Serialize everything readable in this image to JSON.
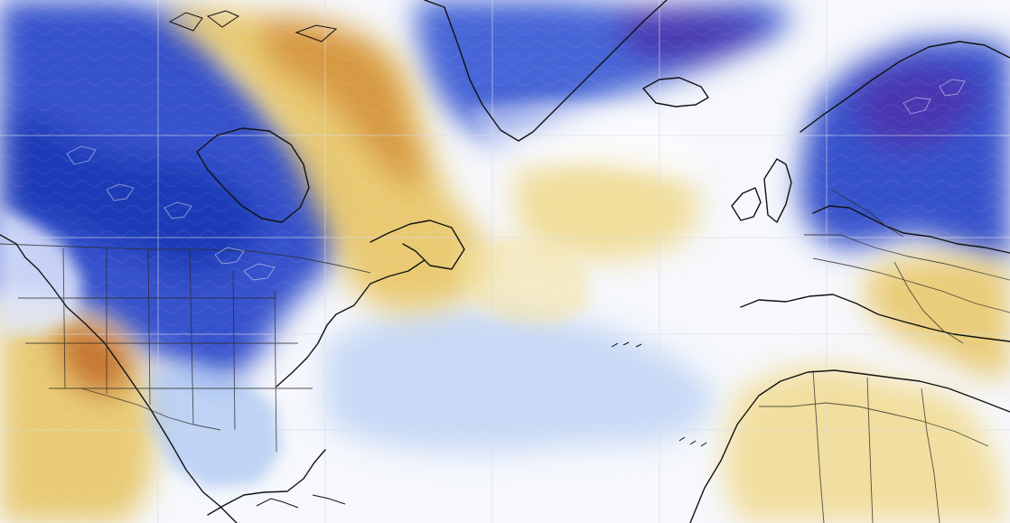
{
  "map": {
    "type": "climate-anomaly-map",
    "labels": [],
    "colors": {
      "ocean_base": "#f6f8fc",
      "deep_blue": "#1c39b5",
      "blue": "#3459d2",
      "light_blue": "#8fb4ee",
      "pale_blue": "#dfe8fb",
      "pale_yellow": "#f3e2a3",
      "yellow": "#e8c86c",
      "orange": "#d69640",
      "deep_orange": "#b96122",
      "purple": "#4a2ea8",
      "coastline": "#111111",
      "grid": "#d7dbe6",
      "boundary": "#2c2c2c"
    },
    "legend": "none"
  }
}
